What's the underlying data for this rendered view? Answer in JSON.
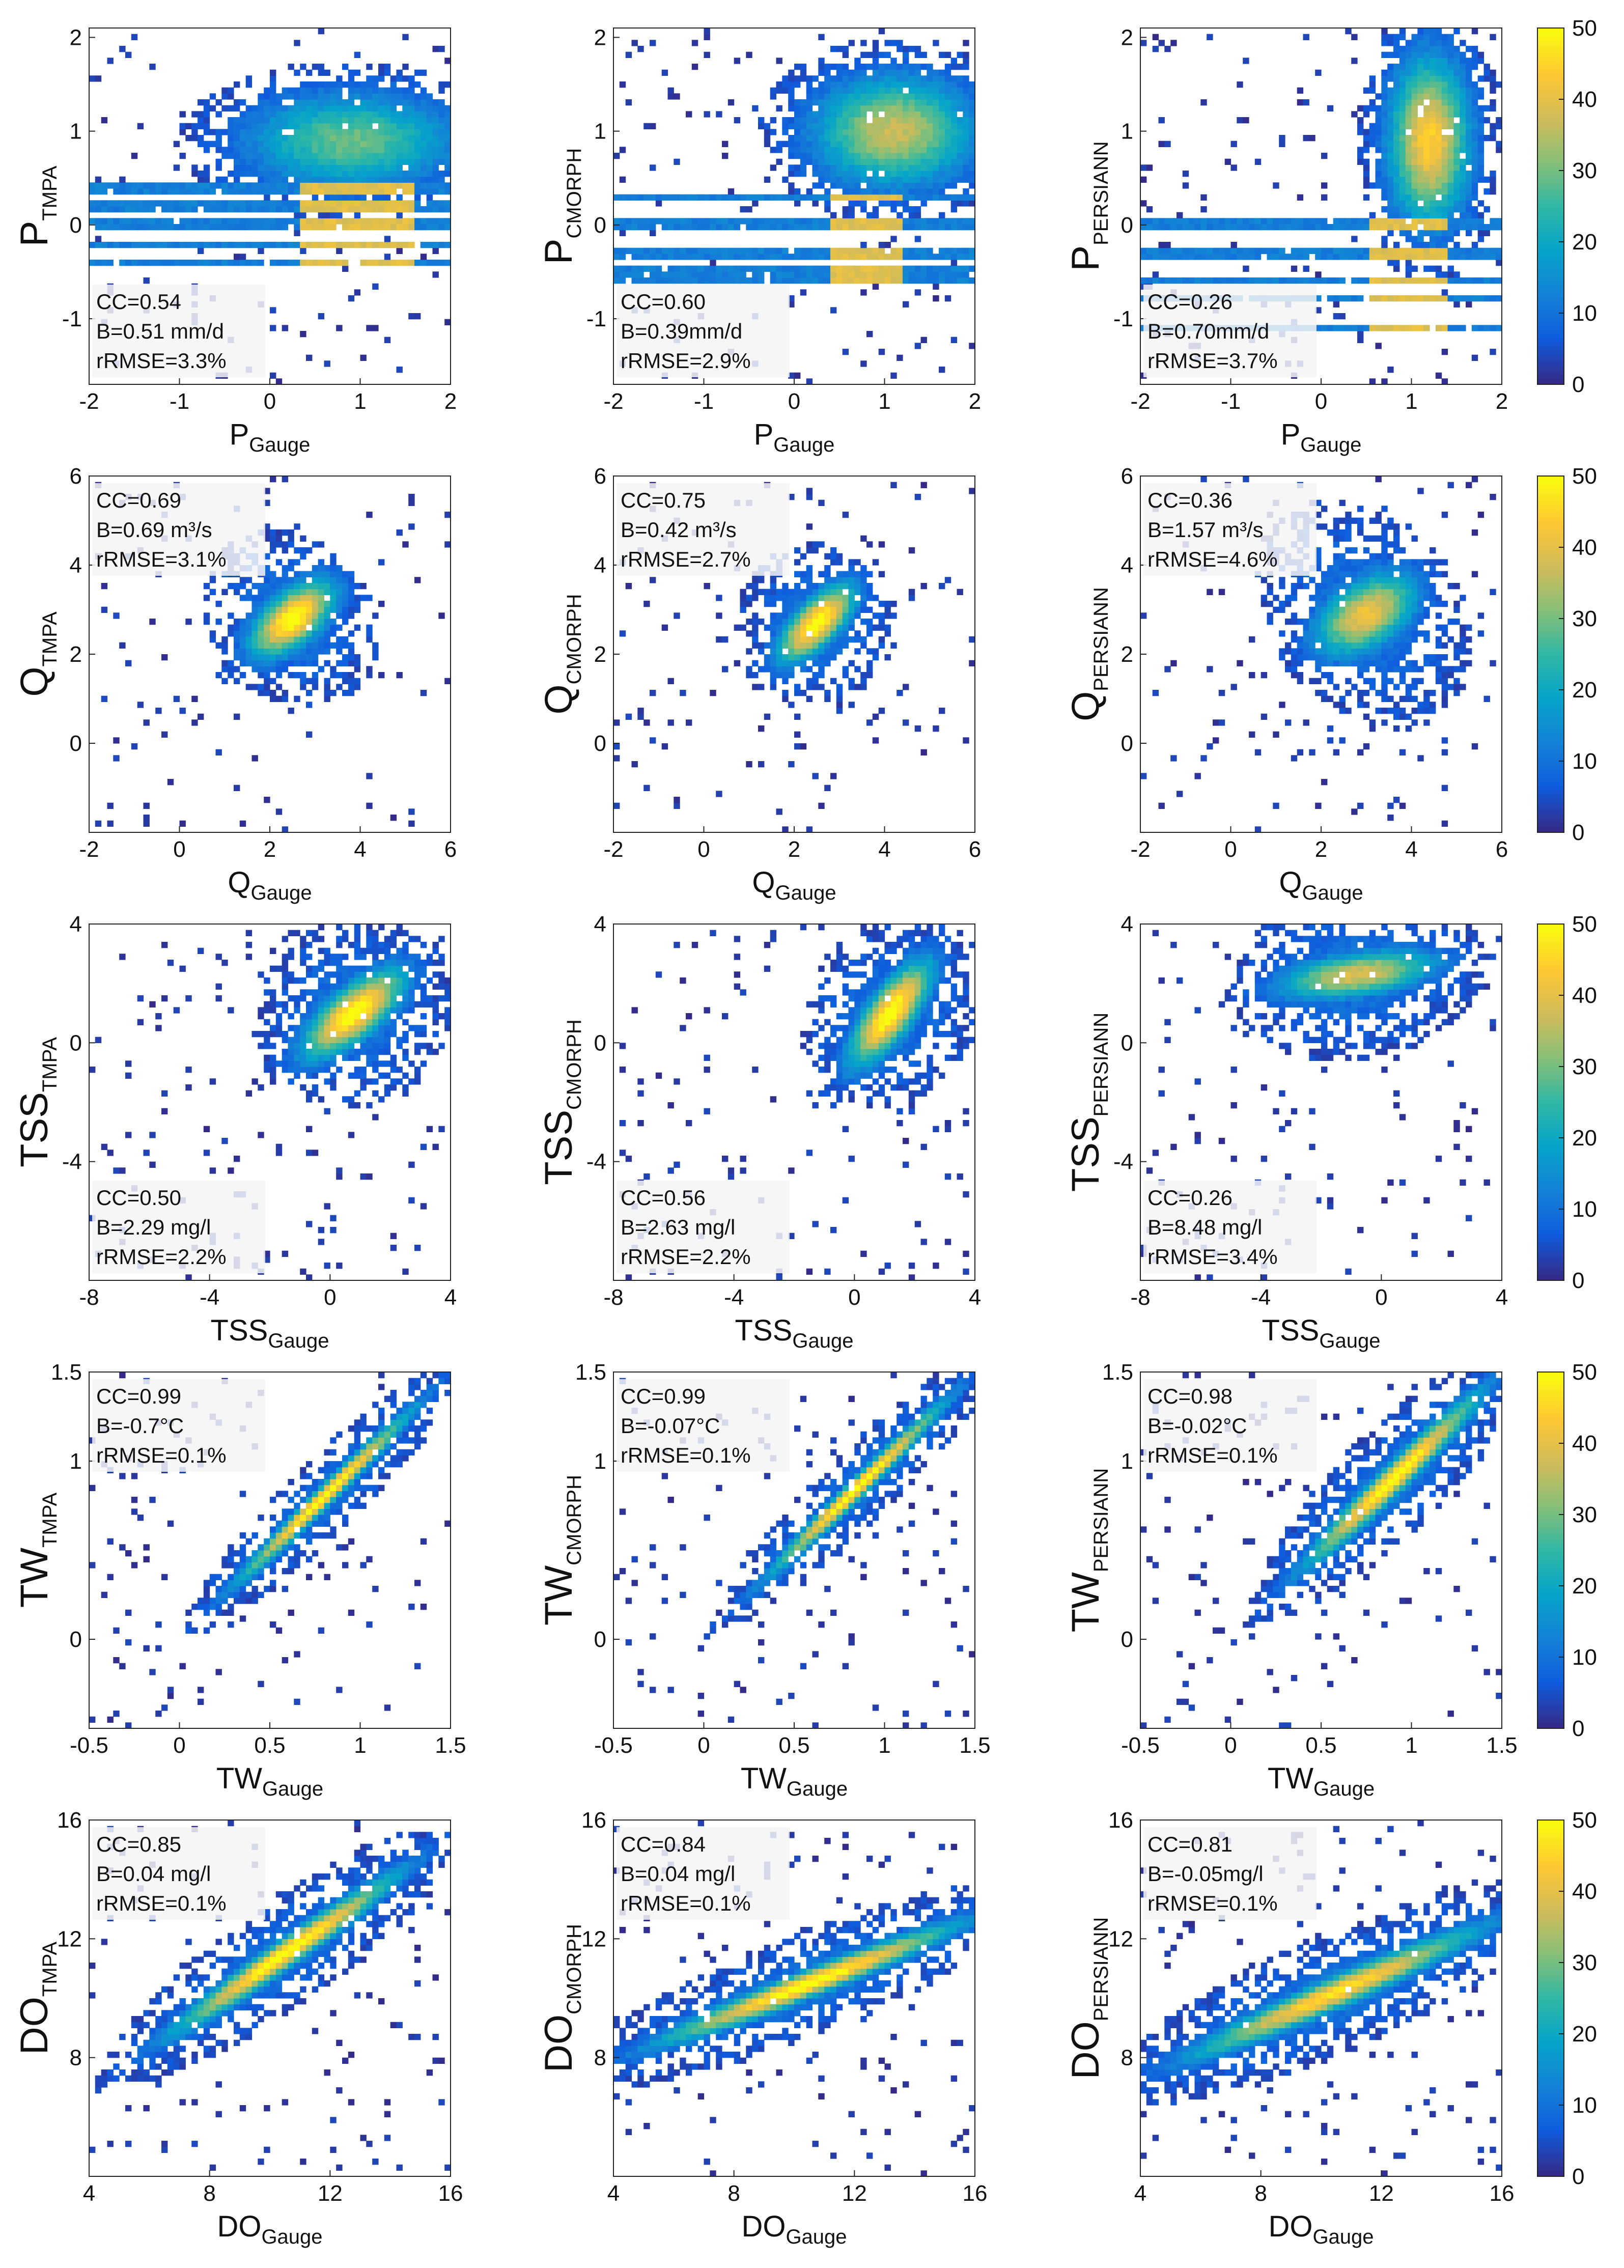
{
  "colorbar": {
    "min": 0,
    "max": 50,
    "ticks": [
      0,
      10,
      20,
      30,
      40,
      50
    ],
    "colors": [
      "#352a87",
      "#0f5cdd",
      "#1481d6",
      "#06a4ca",
      "#2eb7a4",
      "#87bf77",
      "#d1bb59",
      "#fec832",
      "#f9fb0e"
    ]
  },
  "chart_data": [
    {
      "type": "heatmap",
      "row": 0,
      "col": 0,
      "title": "",
      "xlabel": "P",
      "xlabel_sub": "Gauge",
      "ylabel": "P",
      "ylabel_sub": "TMPA",
      "xlim": [
        -2,
        2
      ],
      "ylim": [
        -1.7,
        2.1
      ],
      "xticks": [
        -2,
        -1,
        0,
        1,
        2
      ],
      "yticks": [
        -1,
        0,
        1,
        2
      ],
      "stats": [
        "CC=0.54",
        "B=0.51 mm/d",
        "rRMSE=3.3%"
      ],
      "stats_pos": "bottom-left",
      "pattern": "precip",
      "center": [
        0.9,
        0.9
      ],
      "spread": [
        0.8,
        0.35
      ],
      "intensity": 0.55,
      "streak_ys": [
        0.4,
        0.2,
        0.0,
        -0.2,
        -0.4
      ],
      "bright_streak_x": [
        0.3,
        1.6
      ]
    },
    {
      "type": "heatmap",
      "row": 0,
      "col": 1,
      "title": "",
      "xlabel": "P",
      "xlabel_sub": "Gauge",
      "ylabel": "P",
      "ylabel_sub": "CMORPH",
      "xlim": [
        -2,
        2
      ],
      "ylim": [
        -1.7,
        2.1
      ],
      "xticks": [
        -2,
        -1,
        0,
        1,
        2
      ],
      "yticks": [
        -1,
        0,
        1,
        2
      ],
      "stats": [
        "CC=0.60",
        "B=0.39mm/d",
        "rRMSE=2.9%"
      ],
      "stats_pos": "bottom-left",
      "pattern": "precip",
      "center": [
        1.1,
        1.0
      ],
      "spread": [
        0.6,
        0.4
      ],
      "intensity": 0.7,
      "streak_ys": [
        0.3,
        0.0,
        -0.3,
        -0.5,
        -0.6
      ],
      "bright_streak_x": [
        0.4,
        1.2
      ]
    },
    {
      "type": "heatmap",
      "row": 0,
      "col": 2,
      "title": "",
      "xlabel": "P",
      "xlabel_sub": "Gauge",
      "ylabel": "P",
      "ylabel_sub": "PERSIANN",
      "xlim": [
        -2,
        2
      ],
      "ylim": [
        -1.7,
        2.1
      ],
      "xticks": [
        -2,
        -1,
        0,
        1,
        2
      ],
      "yticks": [
        -1,
        0,
        1,
        2
      ],
      "stats": [
        "CC=0.26",
        "B=0.70mm/d",
        "rRMSE=3.7%"
      ],
      "stats_pos": "bottom-left",
      "pattern": "precip",
      "center": [
        1.2,
        0.9
      ],
      "spread": [
        0.3,
        0.6
      ],
      "intensity": 0.85,
      "streak_ys": [
        0.0,
        -0.3,
        -0.6,
        -0.8,
        -1.1
      ],
      "bright_streak_x": [
        0.5,
        1.4
      ]
    },
    {
      "type": "heatmap",
      "row": 1,
      "col": 0,
      "title": "",
      "xlabel": "Q",
      "xlabel_sub": "Gauge",
      "ylabel": "Q",
      "ylabel_sub": "TMPA",
      "xlim": [
        -2,
        6
      ],
      "ylim": [
        -2,
        6
      ],
      "xticks": [
        -2,
        0,
        2,
        4,
        6
      ],
      "yticks": [
        0,
        2,
        4,
        6
      ],
      "stats": [
        "CC=0.69",
        "B=0.69 m³/s",
        "rRMSE=3.1%"
      ],
      "stats_pos": "top-left",
      "pattern": "diag",
      "center": [
        2.5,
        2.8
      ],
      "sigma": [
        0.75,
        0.38
      ],
      "rot": 0.72,
      "intensity": 1.0
    },
    {
      "type": "heatmap",
      "row": 1,
      "col": 1,
      "title": "",
      "xlabel": "Q",
      "xlabel_sub": "Gauge",
      "ylabel": "Q",
      "ylabel_sub": "CMORPH",
      "xlim": [
        -2,
        6
      ],
      "ylim": [
        -2,
        6
      ],
      "xticks": [
        -2,
        0,
        2,
        4,
        6
      ],
      "yticks": [
        0,
        2,
        4,
        6
      ],
      "stats": [
        "CC=0.75",
        "B=0.42 m³/s",
        "rRMSE=2.7%"
      ],
      "stats_pos": "top-left",
      "pattern": "diag",
      "center": [
        2.5,
        2.7
      ],
      "sigma": [
        0.75,
        0.32
      ],
      "rot": 0.8,
      "intensity": 1.0
    },
    {
      "type": "heatmap",
      "row": 1,
      "col": 2,
      "title": "",
      "xlabel": "Q",
      "xlabel_sub": "Gauge",
      "ylabel": "Q",
      "ylabel_sub": "PERSIANN",
      "xlim": [
        -2,
        6
      ],
      "ylim": [
        -2,
        6
      ],
      "xticks": [
        -2,
        0,
        2,
        4,
        6
      ],
      "yticks": [
        0,
        2,
        4,
        6
      ],
      "stats": [
        "CC=0.36",
        "B=1.57 m³/s",
        "rRMSE=4.6%"
      ],
      "stats_pos": "top-left",
      "pattern": "diag",
      "center": [
        3.0,
        2.9
      ],
      "sigma": [
        0.85,
        0.5
      ],
      "rot": 0.6,
      "intensity": 0.8
    },
    {
      "type": "heatmap",
      "row": 2,
      "col": 0,
      "title": "",
      "xlabel": "TSS",
      "xlabel_sub": "Gauge",
      "ylabel": "TSS",
      "ylabel_sub": "TMPA",
      "xlim": [
        -8,
        4
      ],
      "ylim": [
        -8,
        4
      ],
      "xticks": [
        -8,
        -4,
        0,
        4
      ],
      "yticks": [
        -4,
        0,
        4
      ],
      "stats": [
        "CC=0.50",
        "B=2.29 mg/l",
        "rRMSE=2.2%"
      ],
      "stats_pos": "bottom-left",
      "pattern": "diag",
      "center": [
        0.8,
        1.0
      ],
      "sigma": [
        1.4,
        0.55
      ],
      "rot": 0.7,
      "intensity": 1.0
    },
    {
      "type": "heatmap",
      "row": 2,
      "col": 1,
      "title": "",
      "xlabel": "TSS",
      "xlabel_sub": "Gauge",
      "ylabel": "TSS",
      "ylabel_sub": "CMORPH",
      "xlim": [
        -8,
        4
      ],
      "ylim": [
        -8,
        4
      ],
      "xticks": [
        -8,
        -4,
        0,
        4
      ],
      "yticks": [
        -4,
        0,
        4
      ],
      "stats": [
        "CC=0.56",
        "B=2.63 mg/l",
        "rRMSE=2.2%"
      ],
      "stats_pos": "bottom-left",
      "pattern": "diag",
      "center": [
        1.2,
        1.0
      ],
      "sigma": [
        1.4,
        0.5
      ],
      "rot": 0.95,
      "intensity": 1.0
    },
    {
      "type": "heatmap",
      "row": 2,
      "col": 2,
      "title": "",
      "xlabel": "TSS",
      "xlabel_sub": "Gauge",
      "ylabel": "TSS",
      "ylabel_sub": "PERSIANN",
      "xlim": [
        -8,
        4
      ],
      "ylim": [
        -8,
        4
      ],
      "xticks": [
        -8,
        -4,
        0,
        4
      ],
      "yticks": [
        -4,
        0,
        4
      ],
      "stats": [
        "CC=0.26",
        "B=8.48 mg/l",
        "rRMSE=3.4%"
      ],
      "stats_pos": "bottom-left",
      "pattern": "diag",
      "center": [
        -0.8,
        2.3
      ],
      "sigma": [
        1.8,
        0.5
      ],
      "rot": 0.15,
      "intensity": 0.75
    },
    {
      "type": "heatmap",
      "row": 3,
      "col": 0,
      "title": "",
      "xlabel": "TW",
      "xlabel_sub": "Gauge",
      "ylabel": "TW",
      "ylabel_sub": "TMPA",
      "xlim": [
        -0.5,
        1.5
      ],
      "ylim": [
        -0.5,
        1.5
      ],
      "xticks": [
        -0.5,
        0,
        0.5,
        1,
        1.5
      ],
      "yticks": [
        0,
        1,
        1.5
      ],
      "stats": [
        "CC=0.99",
        "B=-0.7°C",
        "rRMSE=0.1%"
      ],
      "stats_pos": "top-left",
      "pattern": "diag",
      "center": [
        0.8,
        0.8
      ],
      "sigma": [
        0.45,
        0.035
      ],
      "rot": 0.785,
      "intensity": 1.0
    },
    {
      "type": "heatmap",
      "row": 3,
      "col": 1,
      "title": "",
      "xlabel": "TW",
      "xlabel_sub": "Gauge",
      "ylabel": "TW",
      "ylabel_sub": "CMORPH",
      "xlim": [
        -0.5,
        1.5
      ],
      "ylim": [
        -0.5,
        1.5
      ],
      "xticks": [
        -0.5,
        0,
        0.5,
        1,
        1.5
      ],
      "yticks": [
        0,
        1,
        1.5
      ],
      "stats": [
        "CC=0.99",
        "B=-0.07°C",
        "rRMSE=0.1%"
      ],
      "stats_pos": "top-left",
      "pattern": "diag",
      "center": [
        0.85,
        0.85
      ],
      "sigma": [
        0.45,
        0.035
      ],
      "rot": 0.785,
      "intensity": 1.0
    },
    {
      "type": "heatmap",
      "row": 3,
      "col": 2,
      "title": "",
      "xlabel": "TW",
      "xlabel_sub": "Gauge",
      "ylabel": "TW",
      "ylabel_sub": "PERSIANN",
      "xlim": [
        -0.5,
        1.5
      ],
      "ylim": [
        -0.5,
        1.5
      ],
      "xticks": [
        -0.5,
        0,
        0.5,
        1,
        1.5
      ],
      "yticks": [
        0,
        1,
        1.5
      ],
      "stats": [
        "CC=0.98",
        "B=-0.02°C",
        "rRMSE=0.1%"
      ],
      "stats_pos": "top-left",
      "pattern": "diag",
      "center": [
        0.9,
        0.9
      ],
      "sigma": [
        0.45,
        0.05
      ],
      "rot": 0.785,
      "intensity": 1.0
    },
    {
      "type": "heatmap",
      "row": 4,
      "col": 0,
      "title": "",
      "xlabel": "DO",
      "xlabel_sub": "Gauge",
      "ylabel": "DO",
      "ylabel_sub": "TMPA",
      "xlim": [
        4,
        16
      ],
      "ylim": [
        4,
        16
      ],
      "xticks": [
        4,
        8,
        12,
        16
      ],
      "yticks": [
        8,
        12,
        16
      ],
      "stats": [
        "CC=0.85",
        "B=0.04 mg/l",
        "rRMSE=0.1%"
      ],
      "stats_pos": "top-left",
      "pattern": "diag",
      "center": [
        10.5,
        11.5
      ],
      "sigma": [
        3.0,
        0.3
      ],
      "rot": 0.62,
      "intensity": 1.0
    },
    {
      "type": "heatmap",
      "row": 4,
      "col": 1,
      "title": "",
      "xlabel": "DO",
      "xlabel_sub": "Gauge",
      "ylabel": "DO",
      "ylabel_sub": "CMORPH",
      "xlim": [
        4,
        16
      ],
      "ylim": [
        4,
        16
      ],
      "xticks": [
        4,
        8,
        12,
        16
      ],
      "yticks": [
        8,
        12,
        16
      ],
      "stats": [
        "CC=0.84",
        "B=0.04 mg/l",
        "rRMSE=0.1%"
      ],
      "stats_pos": "top-left",
      "pattern": "diag",
      "center": [
        10.5,
        10.5
      ],
      "sigma": [
        3.5,
        0.3
      ],
      "rot": 0.38,
      "intensity": 1.0
    },
    {
      "type": "heatmap",
      "row": 4,
      "col": 2,
      "title": "",
      "xlabel": "DO",
      "xlabel_sub": "Gauge",
      "ylabel": "DO",
      "ylabel_sub": "PERSIANN",
      "xlim": [
        4,
        16
      ],
      "ylim": [
        4,
        16
      ],
      "xticks": [
        4,
        8,
        12,
        16
      ],
      "yticks": [
        8,
        12,
        16
      ],
      "stats": [
        "CC=0.81",
        "B=-0.05mg/l",
        "rRMSE=0.1%"
      ],
      "stats_pos": "top-left",
      "pattern": "diag",
      "center": [
        10.5,
        10.2
      ],
      "sigma": [
        3.5,
        0.35
      ],
      "rot": 0.42,
      "intensity": 0.9
    }
  ]
}
